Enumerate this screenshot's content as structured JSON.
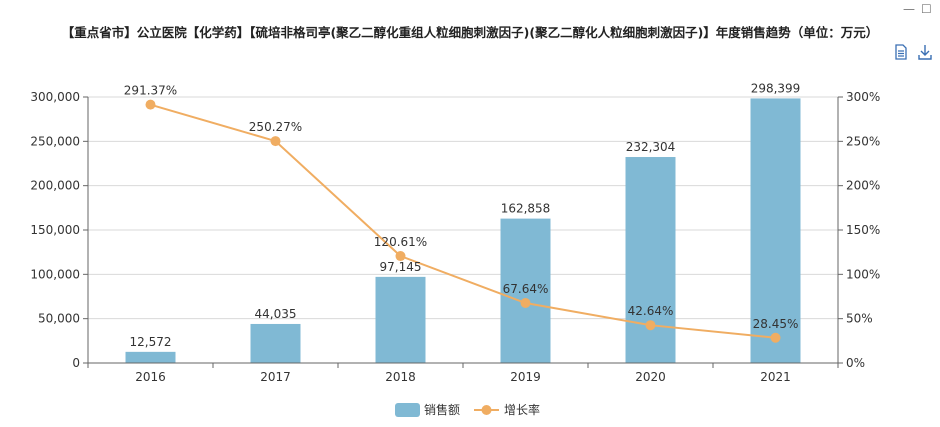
{
  "window": {
    "minimize_glyph": "—",
    "maximize_glyph": "☐"
  },
  "toolbar": {
    "data_view_icon": "document-icon",
    "download_icon": "download-icon",
    "icon_color": "#3a6fb3"
  },
  "chart_data": {
    "type": "bar",
    "title": "【重点省市】公立医院【化学药】【硫培非格司亭(聚乙二醇化重组人粒细胞刺激因子)(聚乙二醇化人粒细胞刺激因子)】年度销售趋势（单位：万元）",
    "categories": [
      "2016",
      "2017",
      "2018",
      "2019",
      "2020",
      "2021"
    ],
    "series": [
      {
        "name": "销售额",
        "type": "bar",
        "axis": "left",
        "values": [
          12572,
          44035,
          97145,
          162858,
          232304,
          298399
        ],
        "labels": [
          "12,572",
          "44,035",
          "97,145",
          "162,858",
          "232,304",
          "298,399"
        ],
        "color": "#80b9d4"
      },
      {
        "name": "增长率",
        "type": "line",
        "axis": "right",
        "values": [
          291.37,
          250.27,
          120.61,
          67.64,
          42.64,
          28.45
        ],
        "labels": [
          "291.37%",
          "250.27%",
          "120.61%",
          "67.64%",
          "42.64%",
          "28.45%"
        ],
        "color": "#f0ad62"
      }
    ],
    "y_left": {
      "min": 0,
      "max": 300000,
      "ticks": [
        "0",
        "50,000",
        "100,000",
        "150,000",
        "200,000",
        "250,000",
        "300,000"
      ]
    },
    "y_right": {
      "min": 0,
      "max": 300,
      "ticks": [
        "0%",
        "50%",
        "100%",
        "150%",
        "200%",
        "250%",
        "300%"
      ]
    },
    "grid": true,
    "legend_position": "bottom-center"
  }
}
